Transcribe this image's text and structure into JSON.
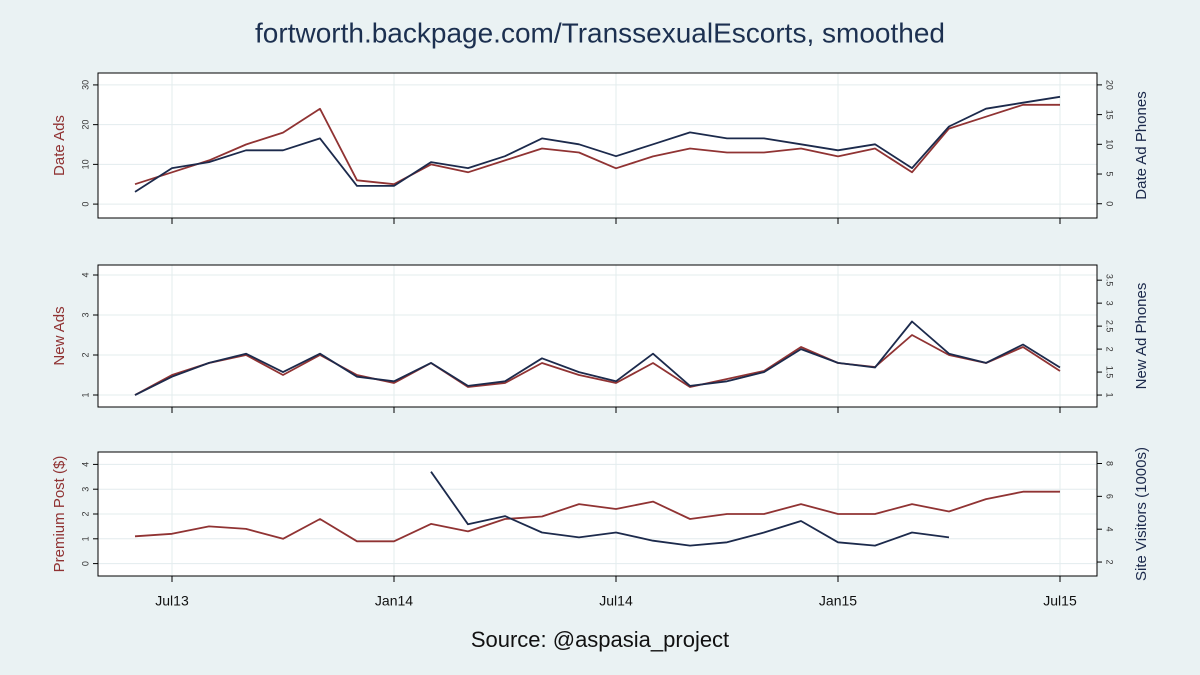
{
  "title": "fortworth.backpage.com/TranssexualEscorts, smoothed",
  "source": "Source: @aspasia_project",
  "chart_data": [
    {
      "type": "line",
      "grid": true,
      "x": [
        "2013-06",
        "2013-07",
        "2013-08",
        "2013-09",
        "2013-10",
        "2013-11",
        "2013-12",
        "2014-01",
        "2014-02",
        "2014-03",
        "2014-04",
        "2014-05",
        "2014-06",
        "2014-07",
        "2014-08",
        "2014-09",
        "2014-10",
        "2014-11",
        "2014-12",
        "2015-01",
        "2015-02",
        "2015-03",
        "2015-04",
        "2015-05",
        "2015-06",
        "2015-07"
      ],
      "xlim": [
        "2013-05",
        "2015-08"
      ],
      "xticks": [
        "2013-07",
        "2014-01",
        "2014-07",
        "2015-01",
        "2015-07"
      ],
      "ylim": [
        -3.5,
        33
      ],
      "yticks": [
        0,
        10,
        20,
        30
      ],
      "y2lim": [
        -2.4,
        22
      ],
      "y2ticks": [
        0,
        5,
        10,
        15,
        20
      ],
      "series": [
        {
          "name": "Date Ads",
          "color": "#903333",
          "values": [
            5,
            8,
            11,
            15,
            18,
            24,
            6,
            5,
            10,
            8,
            11,
            14,
            13,
            9,
            12,
            14,
            13,
            13,
            14,
            12,
            14,
            8,
            19,
            22,
            25,
            25
          ]
        },
        {
          "name": "Date Ad Phones",
          "color": "#1c2a4c",
          "axis": "y2",
          "values": [
            2,
            6,
            7,
            9,
            9,
            11,
            3,
            3,
            7,
            6,
            8,
            11,
            10,
            8,
            10,
            12,
            11,
            11,
            10,
            9,
            10,
            6,
            13,
            16,
            17,
            18
          ]
        }
      ]
    },
    {
      "type": "line",
      "grid": true,
      "x": [
        "2013-06",
        "2013-07",
        "2013-08",
        "2013-09",
        "2013-10",
        "2013-11",
        "2013-12",
        "2014-01",
        "2014-02",
        "2014-03",
        "2014-04",
        "2014-05",
        "2014-06",
        "2014-07",
        "2014-08",
        "2014-09",
        "2014-10",
        "2014-11",
        "2014-12",
        "2015-01",
        "2015-02",
        "2015-03",
        "2015-04",
        "2015-05",
        "2015-06",
        "2015-07"
      ],
      "xlim": [
        "2013-05",
        "2015-08"
      ],
      "xticks": [
        "2013-07",
        "2014-01",
        "2014-07",
        "2015-01",
        "2015-07"
      ],
      "ylim": [
        0.7,
        4.25
      ],
      "yticks": [
        1,
        2,
        3,
        4
      ],
      "y2lim": [
        0.74,
        3.83
      ],
      "y2ticks": [
        1,
        1.5,
        2,
        2.5,
        3,
        3.5
      ],
      "series": [
        {
          "name": "New Ads",
          "color": "#903333",
          "values": [
            1,
            1.5,
            1.8,
            2,
            1.5,
            2,
            1.5,
            1.3,
            1.8,
            1.2,
            1.3,
            1.8,
            1.5,
            1.3,
            1.8,
            1.2,
            1.4,
            1.6,
            2.2,
            1.8,
            1.7,
            2.5,
            2,
            1.8,
            2.2,
            1.6
          ]
        },
        {
          "name": "New Ad Phones",
          "color": "#1c2a4c",
          "axis": "y2",
          "values": [
            1,
            1.4,
            1.7,
            1.9,
            1.5,
            1.9,
            1.4,
            1.3,
            1.7,
            1.2,
            1.3,
            1.8,
            1.5,
            1.3,
            1.9,
            1.2,
            1.3,
            1.5,
            2,
            1.7,
            1.6,
            2.6,
            1.9,
            1.7,
            2.1,
            1.6
          ]
        }
      ]
    },
    {
      "type": "line",
      "grid": true,
      "x": [
        "2013-06",
        "2013-07",
        "2013-08",
        "2013-09",
        "2013-10",
        "2013-11",
        "2013-12",
        "2014-01",
        "2014-02",
        "2014-03",
        "2014-04",
        "2014-05",
        "2014-06",
        "2014-07",
        "2014-08",
        "2014-09",
        "2014-10",
        "2014-11",
        "2014-12",
        "2015-01",
        "2015-02",
        "2015-03",
        "2015-04",
        "2015-05",
        "2015-06",
        "2015-07"
      ],
      "xlim": [
        "2013-05",
        "2015-08"
      ],
      "xticks": [
        {
          "value": "2013-07",
          "label": "Jul13"
        },
        {
          "value": "2014-01",
          "label": "Jan14"
        },
        {
          "value": "2014-07",
          "label": "Jul14"
        },
        {
          "value": "2015-01",
          "label": "Jan15"
        },
        {
          "value": "2015-07",
          "label": "Jul15"
        }
      ],
      "ylim": [
        -0.5,
        4.5
      ],
      "yticks": [
        0,
        1,
        2,
        3,
        4
      ],
      "y2lim": [
        1.15,
        8.7
      ],
      "y2ticks": [
        2,
        4,
        6,
        8
      ],
      "series": [
        {
          "name": "Premium Post ($)",
          "color": "#903333",
          "values": [
            1.1,
            1.2,
            1.5,
            1.4,
            1,
            1.8,
            0.9,
            0.9,
            1.6,
            1.3,
            1.8,
            1.9,
            2.4,
            2.2,
            2.5,
            1.8,
            2,
            2,
            2.4,
            2,
            2,
            2.4,
            2.1,
            2.6,
            2.9,
            2.9
          ]
        },
        {
          "name": "Site Visitors (1000s)",
          "color": "#1c2a4c",
          "axis": "y2",
          "values": [
            null,
            null,
            null,
            null,
            null,
            null,
            null,
            null,
            7.5,
            4.3,
            4.8,
            3.8,
            3.5,
            3.8,
            3.3,
            3,
            3.2,
            3.8,
            4.5,
            3.2,
            3,
            3.8,
            3.5,
            null,
            null,
            null
          ]
        }
      ]
    }
  ]
}
